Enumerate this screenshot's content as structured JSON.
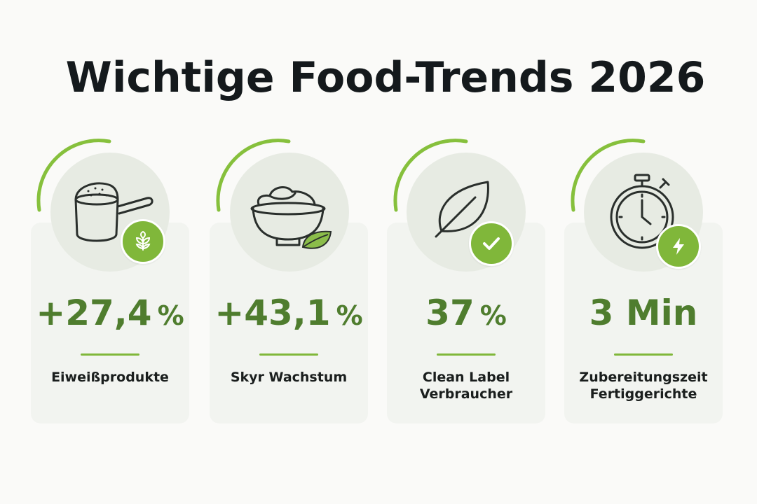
{
  "title": "Wichtige Food-Trends 2026",
  "colors": {
    "accent": "#80b73a",
    "value": "#4f7d2e",
    "icon_bg": "#e7ebe3",
    "card_bg": "#f2f4f0",
    "title": "#14191c"
  },
  "cards": [
    {
      "icon": "protein-scoop-icon",
      "badge_icon": "sprout-icon",
      "value": "+27,4",
      "unit": "%",
      "label_lines": [
        "Eiweißprodukte"
      ]
    },
    {
      "icon": "yogurt-bowl-icon",
      "badge_icon": "leaf-icon",
      "value": "+43,1",
      "unit": "%",
      "label_lines": [
        "Skyr Wachstum"
      ]
    },
    {
      "icon": "leaf-outline-icon",
      "badge_icon": "check-icon",
      "value": "37",
      "unit": "%",
      "label_lines": [
        "Clean Label",
        "Verbraucher"
      ]
    },
    {
      "icon": "stopwatch-icon",
      "badge_icon": "lightning-icon",
      "value": "3 Min",
      "unit": "",
      "label_lines": [
        "Zubereitungszeit",
        "Fertiggerichte"
      ]
    }
  ]
}
